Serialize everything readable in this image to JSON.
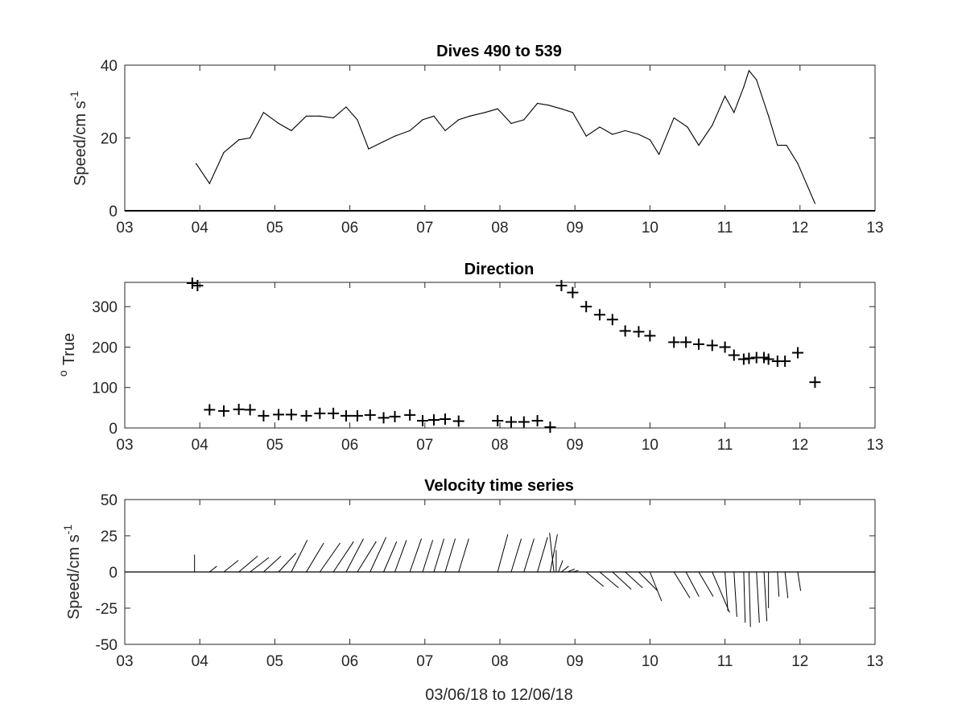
{
  "chart_data": [
    {
      "type": "line",
      "title": "Dives 490 to 539",
      "ylabel_main": "Speed/cm s",
      "ylabel_sup": "-1",
      "xlim": [
        3,
        13
      ],
      "ylim": [
        0,
        40
      ],
      "xticks": [
        3,
        4,
        5,
        6,
        7,
        8,
        9,
        10,
        11,
        12,
        13
      ],
      "xtick_labels": [
        "03",
        "04",
        "05",
        "06",
        "07",
        "08",
        "09",
        "10",
        "11",
        "12",
        "13"
      ],
      "yticks": [
        0,
        20,
        40
      ],
      "ytick_labels": [
        "0",
        "20",
        "40"
      ],
      "x": [
        3.95,
        4.13,
        4.32,
        4.52,
        4.67,
        4.85,
        5.05,
        5.22,
        5.42,
        5.6,
        5.78,
        5.95,
        6.1,
        6.25,
        6.45,
        6.6,
        6.8,
        6.97,
        7.12,
        7.27,
        7.45,
        7.6,
        7.8,
        7.97,
        8.15,
        8.32,
        8.5,
        8.65,
        8.82,
        8.97,
        9.15,
        9.33,
        9.5,
        9.67,
        9.85,
        10.0,
        10.12,
        10.32,
        10.5,
        10.65,
        10.83,
        11.0,
        11.12,
        11.25,
        11.32,
        11.42,
        11.58,
        11.7,
        11.82,
        11.97,
        12.2
      ],
      "y": [
        13,
        7.5,
        16,
        19.5,
        20,
        27,
        24,
        22,
        26,
        26,
        25.5,
        28.5,
        25,
        17,
        19,
        20.5,
        22,
        25,
        26,
        22,
        25,
        26,
        27,
        28,
        24,
        25,
        29.5,
        29,
        28,
        27,
        20.5,
        23,
        21,
        22,
        21,
        19.5,
        15.5,
        25.5,
        23,
        18,
        23.5,
        31.5,
        27,
        34,
        38.5,
        36,
        26,
        18,
        18,
        13,
        2
      ]
    },
    {
      "type": "scatter",
      "title": "Direction",
      "ylabel_main": "True",
      "ylabel_sup": "o",
      "xlim": [
        3,
        13
      ],
      "ylim": [
        0,
        360
      ],
      "xticks": [
        3,
        4,
        5,
        6,
        7,
        8,
        9,
        10,
        11,
        12,
        13
      ],
      "xtick_labels": [
        "03",
        "04",
        "05",
        "06",
        "07",
        "08",
        "09",
        "10",
        "11",
        "12",
        "13"
      ],
      "yticks": [
        0,
        100,
        200,
        300
      ],
      "ytick_labels": [
        "0",
        "100",
        "200",
        "300"
      ],
      "x": [
        3.9,
        3.97,
        4.13,
        4.32,
        4.52,
        4.67,
        4.85,
        5.05,
        5.22,
        5.42,
        5.6,
        5.78,
        5.95,
        6.1,
        6.27,
        6.45,
        6.6,
        6.8,
        6.97,
        7.12,
        7.27,
        7.45,
        7.97,
        8.15,
        8.32,
        8.5,
        8.67,
        8.82,
        8.97,
        9.15,
        9.33,
        9.5,
        9.67,
        9.85,
        10.0,
        10.32,
        10.48,
        10.65,
        10.83,
        11.0,
        11.12,
        11.25,
        11.32,
        11.42,
        11.52,
        11.58,
        11.7,
        11.8,
        11.97,
        12.2
      ],
      "y": [
        358,
        352,
        45,
        42,
        46,
        45,
        30,
        33,
        33,
        30,
        36,
        36,
        30,
        30,
        32,
        25,
        28,
        32,
        18,
        20,
        22,
        17,
        18,
        15,
        15,
        18,
        2,
        352,
        335,
        300,
        280,
        268,
        240,
        238,
        228,
        212,
        212,
        207,
        204,
        200,
        180,
        170,
        172,
        174,
        174,
        170,
        165,
        165,
        186,
        113
      ]
    },
    {
      "type": "stick",
      "title": "Velocity time series",
      "xlabel": "03/06/18 to 12/06/18",
      "ylabel_main": "Speed/cm s",
      "ylabel_sup": "-1",
      "xlim": [
        3,
        13
      ],
      "ylim": [
        -50,
        50
      ],
      "xticks": [
        3,
        4,
        5,
        6,
        7,
        8,
        9,
        10,
        11,
        12,
        13
      ],
      "xtick_labels": [
        "03",
        "04",
        "05",
        "06",
        "07",
        "08",
        "09",
        "10",
        "11",
        "12",
        "13"
      ],
      "yticks": [
        -50,
        -25,
        0,
        25,
        50
      ],
      "ytick_labels": [
        "-50",
        "-25",
        "0",
        "25",
        "50"
      ],
      "sticks": {
        "x": [
          3.93,
          4.13,
          4.32,
          4.52,
          4.67,
          4.85,
          5.05,
          5.22,
          5.42,
          5.6,
          5.78,
          5.95,
          6.1,
          6.27,
          6.45,
          6.6,
          6.8,
          6.97,
          7.12,
          7.27,
          7.45,
          7.97,
          8.15,
          8.32,
          8.5,
          8.67,
          8.72,
          8.75,
          8.78,
          8.82,
          8.9,
          8.97,
          9.15,
          9.33,
          9.5,
          9.67,
          9.85,
          10.0,
          10.32,
          10.48,
          10.65,
          10.83,
          11.0,
          11.12,
          11.25,
          11.32,
          11.42,
          11.52,
          11.58,
          11.7,
          11.8,
          11.97,
          12.2
        ],
        "u": [
          0,
          5,
          10,
          13,
          13,
          12,
          12,
          11,
          12,
          14,
          14,
          12,
          13,
          11,
          9,
          8,
          8,
          7,
          7,
          7,
          7,
          7,
          7,
          7,
          7,
          5,
          -3,
          0,
          3,
          5,
          5,
          4,
          12,
          13,
          13,
          12,
          13,
          8,
          11,
          9,
          10,
          12,
          2,
          2,
          1,
          1,
          2,
          2,
          0,
          1,
          2,
          2,
          -1
        ],
        "v": [
          12,
          4,
          8,
          11,
          10,
          11,
          13,
          22,
          20,
          20,
          21,
          23,
          21,
          24,
          21,
          22,
          23,
          22,
          23,
          23,
          23,
          26,
          23,
          23,
          24,
          26,
          27,
          15,
          8,
          4,
          2,
          1,
          -10,
          -11,
          -12,
          -11,
          -13,
          -20,
          -18,
          -17,
          -17,
          -28,
          -27,
          -31,
          -35,
          -38,
          -35,
          -34,
          -25,
          -17,
          -18,
          -13,
          0
        ]
      }
    }
  ]
}
